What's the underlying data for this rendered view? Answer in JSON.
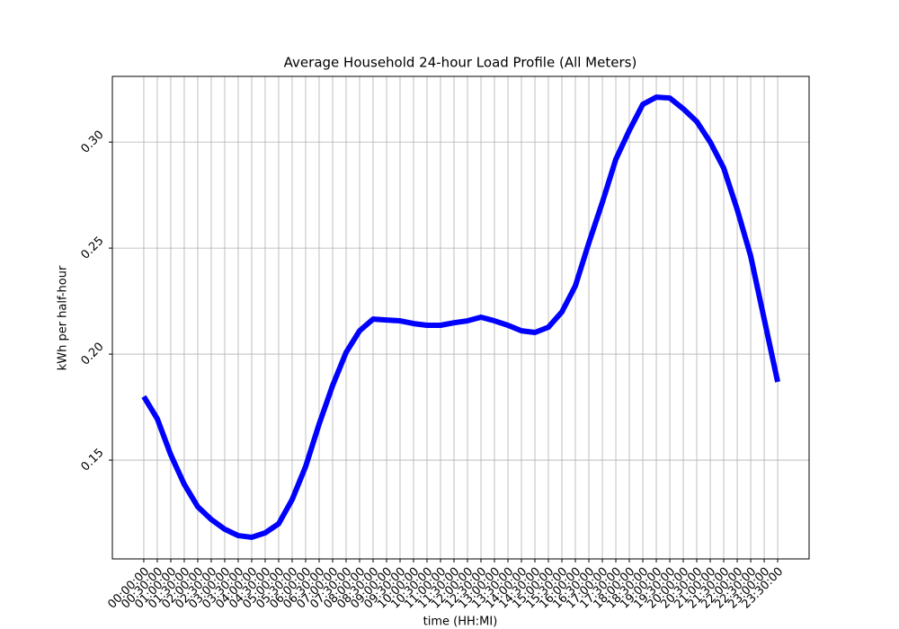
{
  "chart_data": {
    "type": "line",
    "title": "Average Household 24-hour Load Profile (All Meters)",
    "x_label": "time (HH:MI)",
    "y_label": "kWh per half-hour",
    "categories": [
      "00:00:00",
      "00:30:00",
      "01:00:00",
      "01:30:00",
      "02:00:00",
      "02:30:00",
      "03:00:00",
      "03:30:00",
      "04:00:00",
      "04:30:00",
      "05:00:00",
      "05:30:00",
      "06:00:00",
      "06:30:00",
      "07:00:00",
      "07:30:00",
      "08:00:00",
      "08:30:00",
      "09:00:00",
      "09:30:00",
      "10:00:00",
      "10:30:00",
      "11:00:00",
      "11:30:00",
      "12:00:00",
      "12:30:00",
      "13:00:00",
      "13:30:00",
      "14:00:00",
      "14:30:00",
      "15:00:00",
      "15:30:00",
      "16:00:00",
      "16:30:00",
      "17:00:00",
      "17:30:00",
      "18:00:00",
      "18:30:00",
      "19:00:00",
      "19:30:00",
      "20:00:00",
      "20:30:00",
      "21:00:00",
      "21:30:00",
      "22:00:00",
      "22:30:00",
      "23:00:00",
      "23:30:00"
    ],
    "series": [
      {
        "color": "#0000ff",
        "values": [
          0.18,
          0.1695,
          0.1525,
          0.1386,
          0.128,
          0.122,
          0.1174,
          0.1144,
          0.1136,
          0.1157,
          0.12,
          0.1314,
          0.147,
          0.167,
          0.1852,
          0.2008,
          0.211,
          0.2165,
          0.2161,
          0.2157,
          0.2144,
          0.2136,
          0.2136,
          0.2148,
          0.2157,
          0.2174,
          0.2157,
          0.2136,
          0.211,
          0.2102,
          0.2127,
          0.2199,
          0.2322,
          0.2525,
          0.2716,
          0.2919,
          0.3055,
          0.3178,
          0.3212,
          0.3208,
          0.3157,
          0.3097,
          0.3,
          0.2877,
          0.2682,
          0.2462,
          0.2165,
          0.1869
        ]
      }
    ],
    "ylim": [
      0.1034,
      0.331
    ],
    "yticks": [
      0.15,
      {
        "value": 0.2,
        "label": "0.20"
      },
      0.25,
      {
        "value": 0.3,
        "label": "0.30"
      }
    ],
    "grid": true
  }
}
